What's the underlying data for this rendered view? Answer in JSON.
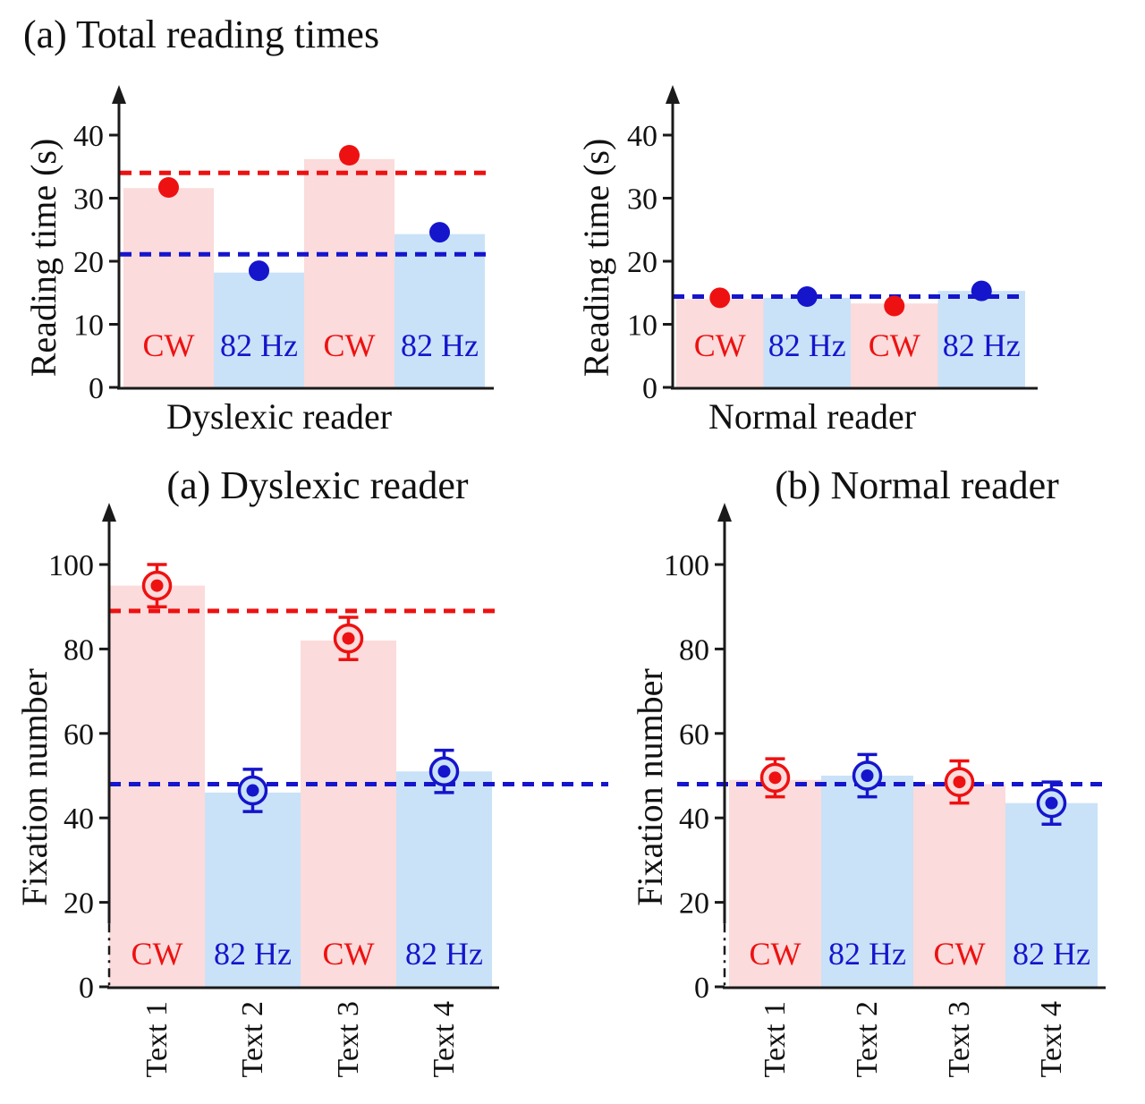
{
  "figure_title": "(a) Total reading times",
  "colors": {
    "red": "#ee1111",
    "blue": "#1515cc",
    "pink_bar": "#fbdbdb",
    "light_blue_bar": "#c9e2f8",
    "axis": "#1a1a1a",
    "text": "#111111"
  },
  "chart_data": [
    {
      "id": "reading-time-dyslexic",
      "position": "top-left",
      "type": "bar",
      "y_axis_label": "Reading time (s)",
      "y_ticks": [
        0,
        10,
        20,
        30,
        40
      ],
      "ylim": [
        0,
        47
      ],
      "x_group_label": "Dyslexic reader",
      "marker_style": "filled-circle",
      "bars": [
        {
          "label": "CW",
          "value": 31.6,
          "fill": "pink",
          "label_color": "red"
        },
        {
          "label": "82 Hz",
          "value": 18.2,
          "fill": "lightblue",
          "label_color": "blue"
        },
        {
          "label": "CW",
          "value": 36.2,
          "fill": "pink",
          "label_color": "red"
        },
        {
          "label": "82 Hz",
          "value": 24.3,
          "fill": "lightblue",
          "label_color": "blue"
        }
      ],
      "points": [
        {
          "value": 31.7,
          "color": "red"
        },
        {
          "value": 18.5,
          "color": "blue"
        },
        {
          "value": 36.8,
          "color": "red"
        },
        {
          "value": 24.6,
          "color": "blue"
        }
      ],
      "reference_lines": [
        {
          "value": 34.0,
          "color": "red"
        },
        {
          "value": 21.1,
          "color": "blue"
        }
      ]
    },
    {
      "id": "reading-time-normal",
      "position": "top-right",
      "type": "bar",
      "y_axis_label": "Reading time (s)",
      "y_ticks": [
        0,
        10,
        20,
        30,
        40
      ],
      "ylim": [
        0,
        47
      ],
      "x_group_label": "Normal reader",
      "marker_style": "filled-circle",
      "bars": [
        {
          "label": "CW",
          "value": 14.0,
          "fill": "pink",
          "label_color": "red"
        },
        {
          "label": "82 Hz",
          "value": 14.2,
          "fill": "lightblue",
          "label_color": "blue"
        },
        {
          "label": "CW",
          "value": 13.3,
          "fill": "pink",
          "label_color": "red"
        },
        {
          "label": "82 Hz",
          "value": 15.3,
          "fill": "lightblue",
          "label_color": "blue"
        }
      ],
      "points": [
        {
          "value": 14.2,
          "color": "red"
        },
        {
          "value": 14.4,
          "color": "blue"
        },
        {
          "value": 12.9,
          "color": "red"
        },
        {
          "value": 15.3,
          "color": "blue"
        }
      ],
      "reference_lines": [
        {
          "value": 14.4,
          "color": "blue"
        }
      ]
    },
    {
      "id": "fixation-dyslexic",
      "position": "bottom-left",
      "type": "bar",
      "title": "(a) Dyslexic reader",
      "y_axis_label": "Fixation number",
      "y_ticks": [
        0,
        20,
        40,
        60,
        80,
        100
      ],
      "ylim": [
        0,
        114
      ],
      "x_tick_labels": [
        "Text 1",
        "Text 2",
        "Text 3",
        "Text 4"
      ],
      "marker_style": "circled-dot-with-error-bar",
      "axis_break_below_value": 15,
      "bars": [
        {
          "label": "CW",
          "value": 95,
          "fill": "pink",
          "label_color": "red"
        },
        {
          "label": "82 Hz",
          "value": 46,
          "fill": "lightblue",
          "label_color": "blue"
        },
        {
          "label": "CW",
          "value": 82,
          "fill": "pink",
          "label_color": "red"
        },
        {
          "label": "82 Hz",
          "value": 51,
          "fill": "lightblue",
          "label_color": "blue"
        }
      ],
      "points": [
        {
          "value": 95,
          "error": 5,
          "color": "red"
        },
        {
          "value": 46.5,
          "error": 5,
          "color": "blue"
        },
        {
          "value": 82.5,
          "error": 5,
          "color": "red"
        },
        {
          "value": 51,
          "error": 5,
          "color": "blue"
        }
      ],
      "reference_lines": [
        {
          "value": 89,
          "color": "red"
        },
        {
          "value": 48,
          "color": "blue",
          "extends_past_plot": true
        }
      ]
    },
    {
      "id": "fixation-normal",
      "position": "bottom-right",
      "type": "bar",
      "title": "(b) Normal reader",
      "y_axis_label": "Fixation number",
      "y_ticks": [
        0,
        20,
        40,
        60,
        80,
        100
      ],
      "ylim": [
        0,
        114
      ],
      "x_tick_labels": [
        "Text 1",
        "Text 2",
        "Text 3",
        "Text 4"
      ],
      "marker_style": "circled-dot-with-error-bar",
      "axis_break_below_value": 15,
      "bars": [
        {
          "label": "CW",
          "value": 49,
          "fill": "pink",
          "label_color": "red"
        },
        {
          "label": "82 Hz",
          "value": 50,
          "fill": "lightblue",
          "label_color": "blue"
        },
        {
          "label": "CW",
          "value": 48,
          "fill": "pink",
          "label_color": "red"
        },
        {
          "label": "82 Hz",
          "value": 43.5,
          "fill": "lightblue",
          "label_color": "blue"
        }
      ],
      "points": [
        {
          "value": 49.5,
          "error": 4.5,
          "color": "red"
        },
        {
          "value": 50,
          "error": 5,
          "color": "blue"
        },
        {
          "value": 48.5,
          "error": 5,
          "color": "red"
        },
        {
          "value": 43.5,
          "error": 5,
          "color": "blue"
        }
      ],
      "reference_lines": [
        {
          "value": 48,
          "color": "blue",
          "extends_past_plot": true
        }
      ]
    }
  ]
}
